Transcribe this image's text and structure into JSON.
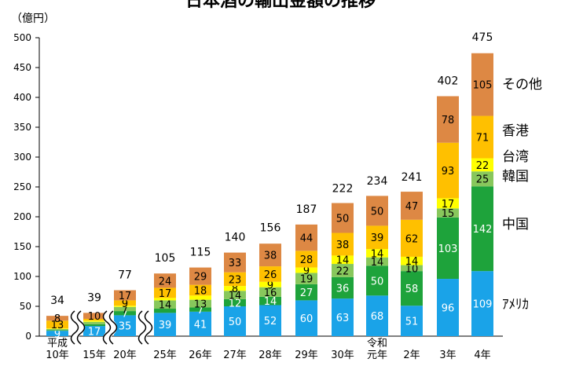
{
  "chart_data": {
    "type": "bar",
    "stacked": true,
    "title": "日本酒の輸出金額の推移",
    "unit_label": "（億円）",
    "ylim": [
      0,
      500
    ],
    "yticks": [
      0,
      50,
      100,
      150,
      200,
      250,
      300,
      350,
      400,
      450,
      500
    ],
    "categories": [
      "10年",
      "15年",
      "20年",
      "25年",
      "26年",
      "27年",
      "28年",
      "29年",
      "30年",
      "元年",
      "2年",
      "3年",
      "4年"
    ],
    "era_labels": [
      "平成",
      "",
      "",
      "",
      "",
      "",
      "",
      "",
      "",
      "令和",
      "",
      "",
      ""
    ],
    "totals": [
      34,
      39,
      77,
      105,
      115,
      140,
      156,
      187,
      222,
      234,
      241,
      402,
      475
    ],
    "series": [
      {
        "name": "ｱﾒﾘｶ",
        "color": "#1aa3e8",
        "values": [
          9,
          17,
          35,
          39,
          41,
          50,
          52,
          60,
          63,
          68,
          51,
          96,
          109
        ],
        "labels": [
          "9",
          "17",
          "35",
          "39",
          "41",
          "50",
          "52",
          "60",
          "63",
          "68",
          "51",
          "96",
          "109"
        ]
      },
      {
        "name": "中国",
        "color": "#1ea33b",
        "values": [
          1,
          3,
          7,
          7,
          7,
          12,
          14,
          27,
          36,
          50,
          58,
          103,
          142
        ],
        "labels": [
          "",
          "",
          "7",
          "",
          "7",
          "12",
          "14",
          "27",
          "36",
          "50",
          "58",
          "103",
          "142"
        ]
      },
      {
        "name": "韓国",
        "color": "#88c75c",
        "values": [
          2,
          4,
          7,
          14,
          13,
          14,
          16,
          19,
          22,
          14,
          10,
          15,
          25
        ],
        "labels": [
          "",
          "",
          "7",
          "14",
          "13",
          "14",
          "16",
          "19",
          "22",
          "14",
          "10",
          "15",
          "25"
        ]
      },
      {
        "name": "台湾",
        "color": "#ffff00",
        "values": [
          1,
          2,
          2,
          4,
          7,
          8,
          9,
          9,
          14,
          14,
          14,
          17,
          22
        ],
        "labels": [
          "",
          "",
          "",
          "",
          "",
          "8",
          "9",
          "9",
          "14",
          "14",
          "14",
          "17",
          "22"
        ]
      },
      {
        "name": "香港",
        "color": "#ffc000",
        "values": [
          13,
          3,
          9,
          17,
          18,
          23,
          26,
          28,
          38,
          39,
          62,
          93,
          71
        ],
        "labels": [
          "13",
          "",
          "9",
          "17",
          "18",
          "23",
          "26",
          "28",
          "38",
          "39",
          "62",
          "93",
          "71"
        ]
      },
      {
        "name": "その他",
        "color": "#dd8844",
        "values": [
          8,
          10,
          17,
          24,
          29,
          33,
          38,
          44,
          50,
          50,
          47,
          78,
          105
        ],
        "labels": [
          "8",
          "10",
          "17",
          "24",
          "29",
          "33",
          "38",
          "44",
          "50",
          "50",
          "47",
          "78",
          "105"
        ]
      }
    ],
    "legend_position": "right",
    "grid": false
  }
}
